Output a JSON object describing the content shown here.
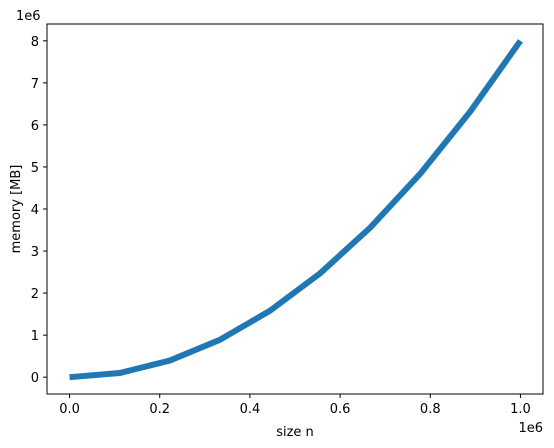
{
  "chart_data": {
    "type": "line",
    "x_label": "size n",
    "y_label": "memory [MB]",
    "x_offset_label": "1e6",
    "y_offset_label": "1e6",
    "x": [
      0,
      111111,
      222222,
      333333,
      444444,
      555556,
      666667,
      777778,
      888889,
      1000000
    ],
    "series": [
      {
        "color": "#1f77b4",
        "values": [
          0,
          98765,
          395062,
          888889,
          1580247,
          2469136,
          3555556,
          4839506,
          6320988,
          8000000
        ]
      }
    ],
    "xlim": [
      -50000,
      1050000
    ],
    "xticks": [
      {
        "value": 0,
        "label": "0.0"
      },
      {
        "value": 200000,
        "label": "0.2"
      },
      {
        "value": 400000,
        "label": "0.4"
      },
      {
        "value": 600000,
        "label": "0.6"
      },
      {
        "value": 800000,
        "label": "0.8"
      },
      {
        "value": 1000000,
        "label": "1.0"
      }
    ],
    "ylim": [
      -400000,
      8400000
    ],
    "yticks": [
      {
        "value": 0,
        "label": "0"
      },
      {
        "value": 1000000,
        "label": "1"
      },
      {
        "value": 2000000,
        "label": "2"
      },
      {
        "value": 3000000,
        "label": "3"
      },
      {
        "value": 4000000,
        "label": "4"
      },
      {
        "value": 5000000,
        "label": "5"
      },
      {
        "value": 6000000,
        "label": "6"
      },
      {
        "value": 7000000,
        "label": "7"
      },
      {
        "value": 8000000,
        "label": "8"
      }
    ],
    "grid": false
  }
}
